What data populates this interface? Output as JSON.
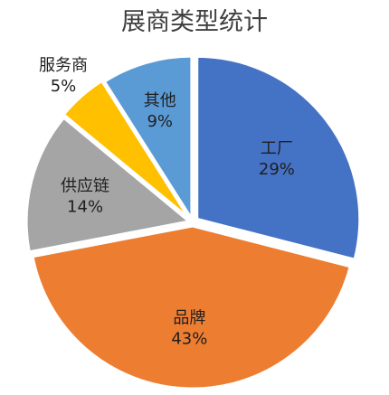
{
  "chart_data": {
    "type": "pie",
    "title": "展商类型统计",
    "slices": [
      {
        "label": "工厂",
        "value": 29,
        "value_text": "29%",
        "color": "#4472C4"
      },
      {
        "label": "品牌",
        "value": 43,
        "value_text": "43%",
        "color": "#ED7D31"
      },
      {
        "label": "供应链",
        "value": 14,
        "value_text": "14%",
        "color": "#A5A5A5"
      },
      {
        "label": "服务商",
        "value": 5,
        "value_text": "5%",
        "color": "#FFC000"
      },
      {
        "label": "其他",
        "value": 9,
        "value_text": "9%",
        "color": "#5B9BD5"
      }
    ],
    "start_at": "top",
    "direction": "clockwise",
    "legend": "none",
    "labels": "inside, leader-less; small slice labeled outside"
  }
}
